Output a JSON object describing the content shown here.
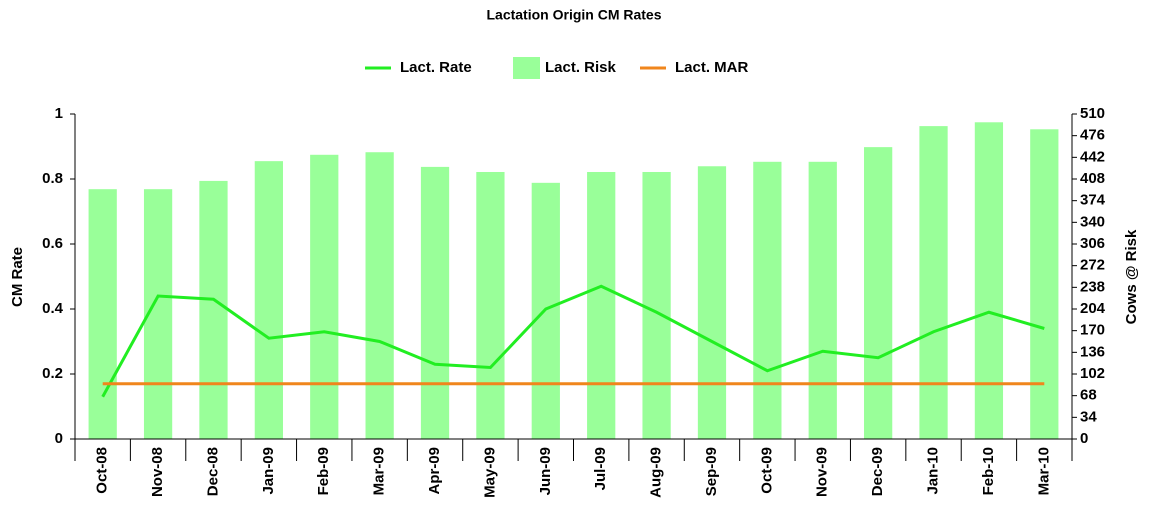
{
  "chart_data": {
    "type": "combo",
    "title": "Lactation Origin CM Rates",
    "categories": [
      "Oct-08",
      "Nov-08",
      "Dec-08",
      "Jan-09",
      "Feb-09",
      "Mar-09",
      "Apr-09",
      "May-09",
      "Jun-09",
      "Jul-09",
      "Aug-09",
      "Sep-09",
      "Oct-09",
      "Nov-09",
      "Dec-09",
      "Jan-10",
      "Feb-10",
      "Mar-10"
    ],
    "series": [
      {
        "name": "Lact. Rate",
        "type": "line",
        "color": "#22ee22",
        "axis": "y",
        "values": [
          0.13,
          0.44,
          0.43,
          0.31,
          0.33,
          0.3,
          0.23,
          0.22,
          0.4,
          0.47,
          0.39,
          0.3,
          0.21,
          0.27,
          0.25,
          0.33,
          0.39,
          0.34
        ]
      },
      {
        "name": "Lact. Risk",
        "type": "bar",
        "color": "#99ff99",
        "axis": "y2",
        "values": [
          392,
          392,
          405,
          436,
          446,
          450,
          427,
          419,
          402,
          419,
          419,
          428,
          435,
          435,
          458,
          491,
          497,
          486
        ]
      },
      {
        "name": "Lact. MAR",
        "type": "line",
        "color": "#f0861c",
        "axis": "y",
        "values": [
          0.17,
          0.17,
          0.17,
          0.17,
          0.17,
          0.17,
          0.17,
          0.17,
          0.17,
          0.17,
          0.17,
          0.17,
          0.17,
          0.17,
          0.17,
          0.17,
          0.17,
          0.17
        ]
      }
    ],
    "ylabel": "CM Rate",
    "y2label": "Cows @ Risk",
    "ylim": [
      0,
      1
    ],
    "yticks": [
      0,
      0.2,
      0.4,
      0.6,
      0.8,
      1
    ],
    "y2lim": [
      0,
      510
    ],
    "y2ticks": [
      0,
      34,
      68,
      102,
      136,
      170,
      204,
      238,
      272,
      306,
      340,
      374,
      408,
      442,
      476,
      510
    ],
    "grid": false,
    "legend": "top"
  }
}
